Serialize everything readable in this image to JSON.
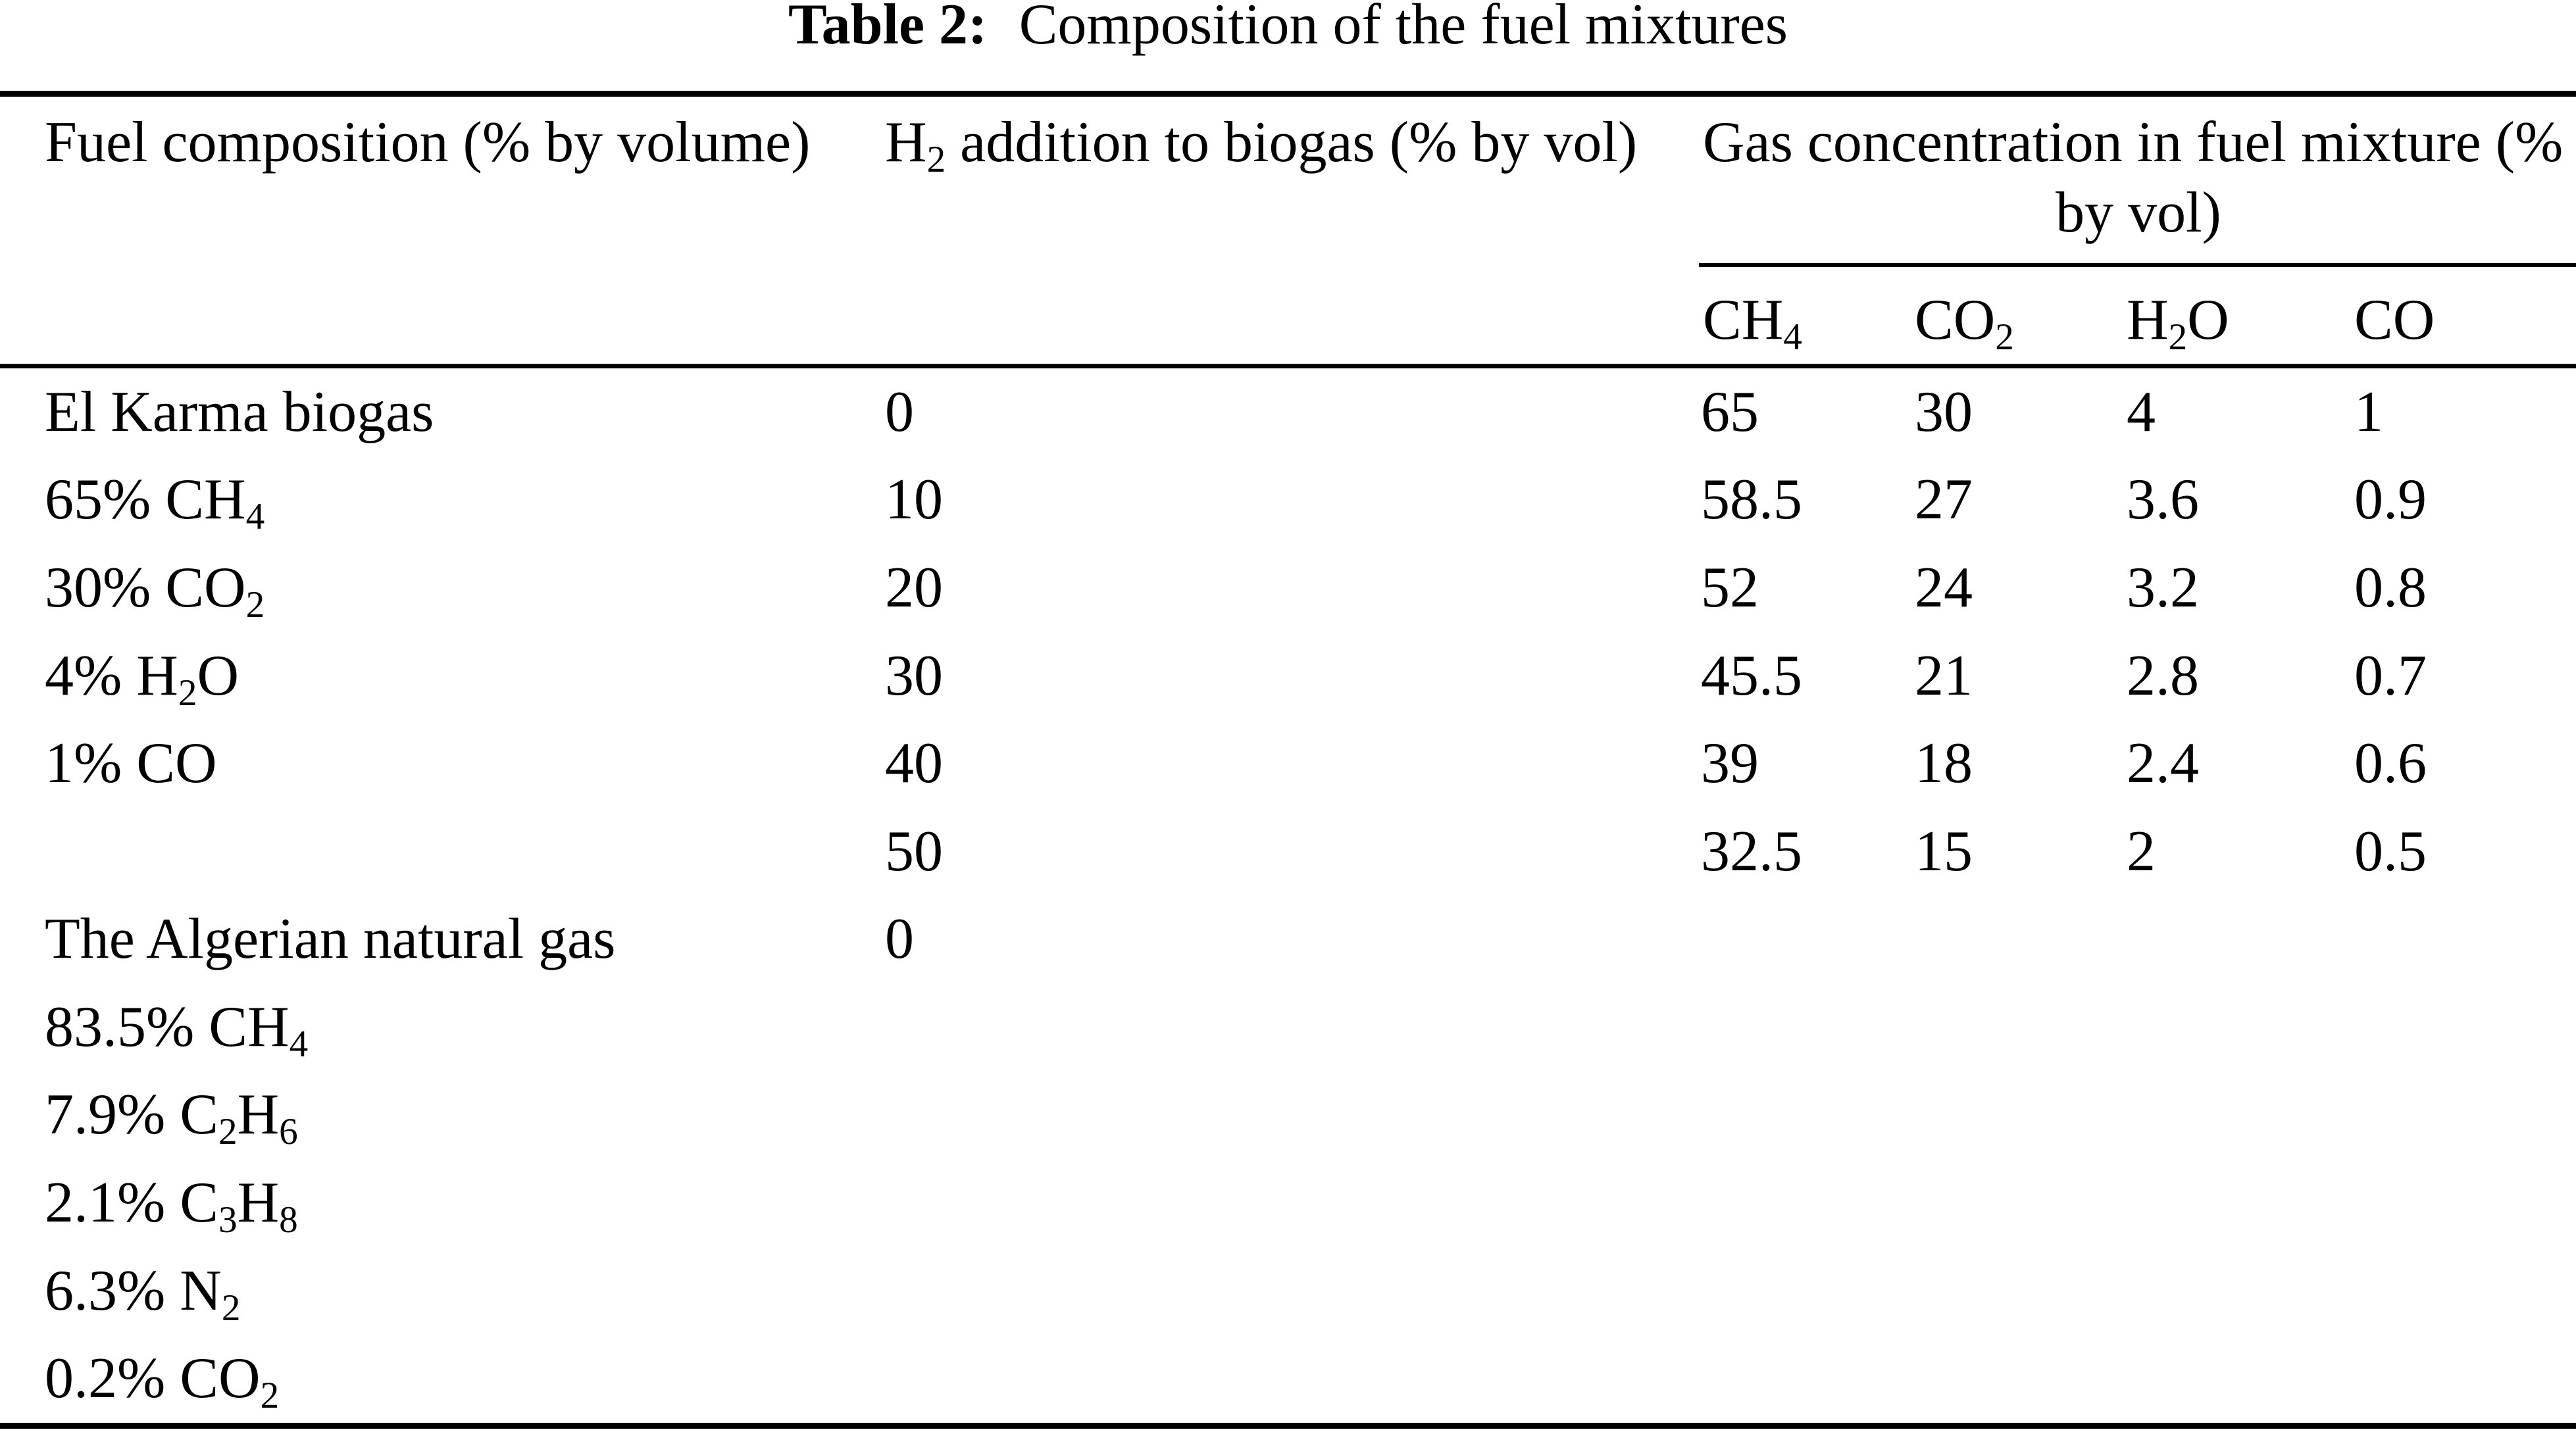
{
  "caption": {
    "label": "Table 2:",
    "text": "Composition of the fuel mixtures"
  },
  "header": {
    "fuel_composition": "Fuel composition (% by volume)",
    "h2_addition": "H~2~ addition to biogas (% by vol)",
    "gas_concentration_line1": "Gas concentration in fuel mixture (%",
    "gas_concentration_line2": "by vol)",
    "subcolumns": {
      "ch4": "CH~4~",
      "co2": "CO~2~",
      "h2o": "H~2~O",
      "co": "CO"
    }
  },
  "rows": [
    {
      "fuel": "El Karma biogas",
      "h2": "0",
      "ch4": "65",
      "co2": "30",
      "h2o": "4",
      "co": "1"
    },
    {
      "fuel": "65% CH~4~",
      "h2": "10",
      "ch4": "58.5",
      "co2": "27",
      "h2o": "3.6",
      "co": "0.9"
    },
    {
      "fuel": "30% CO~2~",
      "h2": "20",
      "ch4": "52",
      "co2": "24",
      "h2o": "3.2",
      "co": "0.8"
    },
    {
      "fuel": "4% H~2~O",
      "h2": "30",
      "ch4": "45.5",
      "co2": "21",
      "h2o": "2.8",
      "co": "0.7"
    },
    {
      "fuel": "1% CO",
      "h2": "40",
      "ch4": "39",
      "co2": "18",
      "h2o": "2.4",
      "co": "0.6"
    },
    {
      "h2": "50",
      "ch4": "32.5",
      "co2": "15",
      "h2o": "2",
      "co": "0.5"
    },
    {
      "fuel": "The Algerian natural gas",
      "h2": "0"
    },
    {
      "fuel": "83.5% CH~4~"
    },
    {
      "fuel": "7.9% C~2~H~6~"
    },
    {
      "fuel": "2.1% C~3~H~8~"
    },
    {
      "fuel": "6.3% N~2~"
    },
    {
      "fuel": "0.2% CO~2~"
    }
  ],
  "colors": {
    "text": "#000000",
    "background": "#ffffff",
    "rule": "#000000"
  }
}
